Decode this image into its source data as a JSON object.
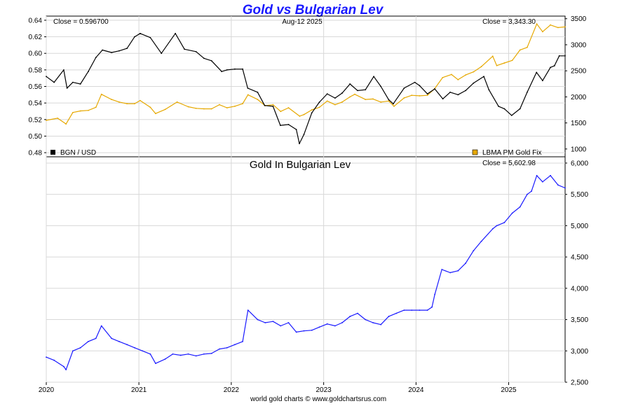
{
  "title": "Gold vs Bulgarian Lev",
  "footer": "world gold charts © www.goldchartsrus.com",
  "colors": {
    "title": "#1a1aff",
    "bgn": "#000000",
    "gold": "#e6a800",
    "gold_bgn": "#1a1aff"
  },
  "chart_data": [
    {
      "type": "line",
      "panel": "top",
      "date_label": "Aug-12  2025",
      "left_close": "Close = 0.596700",
      "right_close": "Close = 3,343.30",
      "legend": [
        {
          "name": "BGN / USD",
          "color": "#000000",
          "position": "bottom-left"
        },
        {
          "name": "LBMA PM Gold Fix",
          "color": "#e6a800",
          "position": "bottom-right"
        }
      ],
      "x_ticks": [
        "2020",
        "2021",
        "2022",
        "2023",
        "2024",
        "2025"
      ],
      "x_range": [
        "2020-01-01",
        "2025-08-12"
      ],
      "y_left": {
        "range": [
          0.475,
          0.645
        ],
        "ticks": [
          "0.48",
          "0.50",
          "0.52",
          "0.54",
          "0.56",
          "0.58",
          "0.60",
          "0.62",
          "0.64"
        ]
      },
      "y_right": {
        "range": [
          850,
          3550
        ],
        "ticks": [
          "1000",
          "1500",
          "2000",
          "2500",
          "3000",
          "3500"
        ]
      },
      "grid": true,
      "series": [
        {
          "name": "BGN / USD",
          "axis": "left",
          "x": [
            "2020-01-01",
            "2020-02-01",
            "2020-03-10",
            "2020-03-23",
            "2020-04-15",
            "2020-05-15",
            "2020-06-15",
            "2020-07-15",
            "2020-08-10",
            "2020-09-15",
            "2020-10-15",
            "2020-11-15",
            "2020-12-15",
            "2021-01-06",
            "2021-02-15",
            "2021-03-31",
            "2021-05-25",
            "2021-06-30",
            "2021-08-15",
            "2021-09-15",
            "2021-10-15",
            "2021-11-24",
            "2021-12-15",
            "2022-01-15",
            "2022-02-15",
            "2022-03-07",
            "2022-04-15",
            "2022-05-13",
            "2022-06-15",
            "2022-07-14",
            "2022-08-15",
            "2022-09-15",
            "2022-09-27",
            "2022-10-15",
            "2022-11-15",
            "2022-12-15",
            "2023-01-15",
            "2023-02-15",
            "2023-03-15",
            "2023-04-15",
            "2023-05-15",
            "2023-06-15",
            "2023-07-18",
            "2023-08-15",
            "2023-09-15",
            "2023-10-03",
            "2023-11-15",
            "2023-12-27",
            "2024-01-15",
            "2024-02-15",
            "2024-03-15",
            "2024-04-16",
            "2024-05-15",
            "2024-06-15",
            "2024-07-15",
            "2024-08-15",
            "2024-09-25",
            "2024-10-15",
            "2024-11-22",
            "2024-12-15",
            "2025-01-13",
            "2025-02-15",
            "2025-03-15",
            "2025-04-21",
            "2025-05-15",
            "2025-06-15",
            "2025-07-01",
            "2025-07-20",
            "2025-08-12"
          ],
          "values": [
            0.572,
            0.565,
            0.58,
            0.558,
            0.565,
            0.563,
            0.578,
            0.595,
            0.604,
            0.601,
            0.603,
            0.606,
            0.62,
            0.624,
            0.619,
            0.6,
            0.624,
            0.605,
            0.602,
            0.594,
            0.591,
            0.578,
            0.58,
            0.581,
            0.581,
            0.558,
            0.553,
            0.537,
            0.536,
            0.513,
            0.514,
            0.508,
            0.491,
            0.502,
            0.528,
            0.541,
            0.551,
            0.546,
            0.552,
            0.563,
            0.555,
            0.556,
            0.572,
            0.56,
            0.544,
            0.539,
            0.558,
            0.565,
            0.561,
            0.551,
            0.557,
            0.545,
            0.553,
            0.55,
            0.555,
            0.564,
            0.572,
            0.556,
            0.536,
            0.533,
            0.525,
            0.533,
            0.553,
            0.577,
            0.567,
            0.583,
            0.585,
            0.597,
            0.597
          ]
        },
        {
          "name": "LBMA PM Gold Fix",
          "axis": "right",
          "x": [
            "2020-01-01",
            "2020-02-15",
            "2020-03-19",
            "2020-04-15",
            "2020-05-15",
            "2020-06-15",
            "2020-07-15",
            "2020-08-06",
            "2020-09-15",
            "2020-10-15",
            "2020-11-15",
            "2020-12-15",
            "2021-01-06",
            "2021-02-15",
            "2021-03-08",
            "2021-04-15",
            "2021-06-01",
            "2021-07-15",
            "2021-08-15",
            "2021-09-15",
            "2021-10-15",
            "2021-11-15",
            "2021-12-15",
            "2022-01-15",
            "2022-02-15",
            "2022-03-08",
            "2022-04-15",
            "2022-05-15",
            "2022-06-15",
            "2022-07-15",
            "2022-08-15",
            "2022-09-28",
            "2022-10-15",
            "2022-11-15",
            "2022-12-15",
            "2023-01-15",
            "2023-02-15",
            "2023-03-15",
            "2023-04-15",
            "2023-05-04",
            "2023-06-15",
            "2023-07-15",
            "2023-08-15",
            "2023-09-15",
            "2023-10-06",
            "2023-11-15",
            "2023-12-15",
            "2024-01-15",
            "2024-02-15",
            "2024-03-15",
            "2024-04-15",
            "2024-05-20",
            "2024-06-15",
            "2024-07-15",
            "2024-08-15",
            "2024-09-15",
            "2024-10-30",
            "2024-11-15",
            "2024-12-15",
            "2025-01-15",
            "2025-02-15",
            "2025-03-15",
            "2025-04-22",
            "2025-05-15",
            "2025-06-15",
            "2025-07-15",
            "2025-08-12"
          ],
          "values": [
            1550,
            1590,
            1480,
            1700,
            1730,
            1740,
            1800,
            2050,
            1950,
            1900,
            1870,
            1870,
            1930,
            1800,
            1680,
            1760,
            1900,
            1810,
            1780,
            1770,
            1770,
            1850,
            1790,
            1820,
            1870,
            2040,
            1950,
            1830,
            1850,
            1720,
            1790,
            1630,
            1660,
            1750,
            1800,
            1920,
            1850,
            1900,
            2000,
            2050,
            1950,
            1960,
            1900,
            1920,
            1820,
            1980,
            2030,
            2020,
            2030,
            2160,
            2370,
            2430,
            2330,
            2420,
            2480,
            2580,
            2780,
            2600,
            2650,
            2700,
            2900,
            2950,
            3400,
            3250,
            3380,
            3330,
            3343
          ]
        }
      ]
    },
    {
      "type": "line",
      "panel": "bottom",
      "title": "Gold In Bulgarian Lev",
      "right_close": "Close = 5,602.98",
      "x_ticks": [
        "2020",
        "2021",
        "2022",
        "2023",
        "2024",
        "2025"
      ],
      "x_range": [
        "2020-01-01",
        "2025-08-12"
      ],
      "y_right": {
        "range": [
          2500,
          6100
        ],
        "ticks": [
          "2,500",
          "3,000",
          "3,500",
          "4,000",
          "4,500",
          "5,000",
          "5,500",
          "6,000"
        ]
      },
      "grid": true,
      "series": [
        {
          "x": [
            "2020-01-01",
            "2020-02-01",
            "2020-03-10",
            "2020-03-19",
            "2020-04-15",
            "2020-05-15",
            "2020-06-15",
            "2020-07-15",
            "2020-08-06",
            "2020-09-15",
            "2020-10-15",
            "2020-11-15",
            "2020-12-15",
            "2021-01-15",
            "2021-02-15",
            "2021-03-08",
            "2021-04-15",
            "2021-05-15",
            "2021-06-15",
            "2021-07-15",
            "2021-08-15",
            "2021-09-15",
            "2021-10-15",
            "2021-11-15",
            "2021-12-15",
            "2022-01-15",
            "2022-02-15",
            "2022-03-08",
            "2022-04-15",
            "2022-05-15",
            "2022-06-15",
            "2022-07-15",
            "2022-08-15",
            "2022-09-15",
            "2022-10-15",
            "2022-11-15",
            "2022-12-15",
            "2023-01-15",
            "2023-02-15",
            "2023-03-15",
            "2023-04-15",
            "2023-05-15",
            "2023-06-15",
            "2023-07-15",
            "2023-08-15",
            "2023-09-15",
            "2023-10-15",
            "2023-11-15",
            "2023-12-15",
            "2024-01-15",
            "2024-02-15",
            "2024-03-04",
            "2024-03-15",
            "2024-04-12",
            "2024-05-15",
            "2024-06-15",
            "2024-07-15",
            "2024-08-15",
            "2024-09-15",
            "2024-10-30",
            "2024-11-15",
            "2024-12-15",
            "2025-01-15",
            "2025-02-15",
            "2025-03-15",
            "2025-04-01",
            "2025-04-22",
            "2025-05-15",
            "2025-06-15",
            "2025-07-15",
            "2025-08-12"
          ],
          "values": [
            2900,
            2850,
            2750,
            2700,
            3000,
            3050,
            3150,
            3200,
            3400,
            3200,
            3150,
            3100,
            3050,
            3000,
            2950,
            2800,
            2870,
            2950,
            2930,
            2950,
            2920,
            2950,
            2960,
            3030,
            3050,
            3100,
            3150,
            3650,
            3500,
            3450,
            3470,
            3400,
            3450,
            3300,
            3320,
            3330,
            3380,
            3430,
            3400,
            3450,
            3550,
            3600,
            3500,
            3450,
            3420,
            3550,
            3600,
            3650,
            3650,
            3650,
            3650,
            3700,
            3900,
            4300,
            4250,
            4280,
            4400,
            4600,
            4750,
            4950,
            5000,
            5050,
            5200,
            5300,
            5500,
            5550,
            5800,
            5700,
            5800,
            5650,
            5603
          ]
        }
      ]
    }
  ]
}
